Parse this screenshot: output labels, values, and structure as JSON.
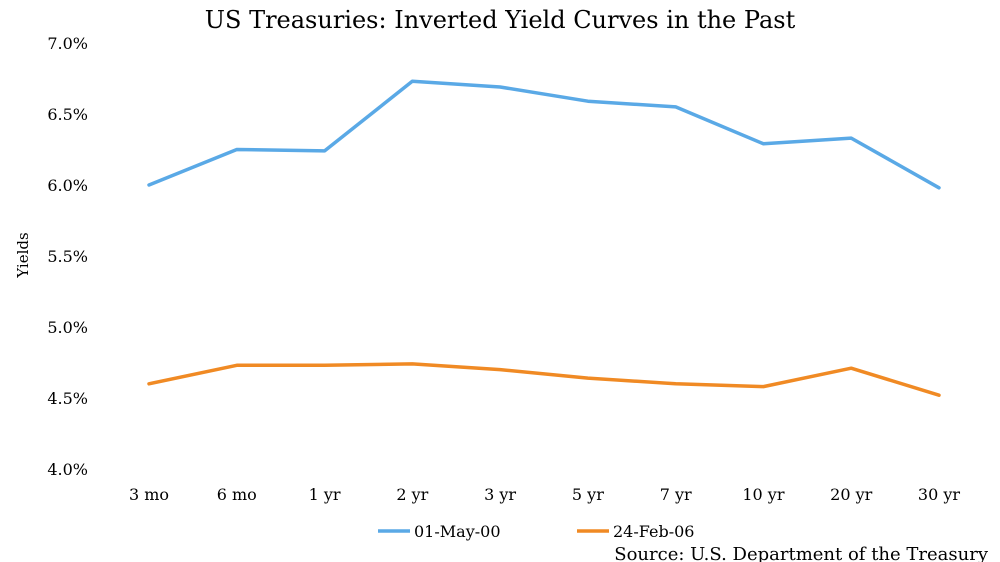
{
  "chart_data": {
    "type": "line",
    "title": "US Treasuries: Inverted Yield Curves in the Past",
    "ylabel": "Yields",
    "xlabel": "",
    "categories": [
      "3 mo",
      "6 mo",
      "1 yr",
      "2 yr",
      "3 yr",
      "5 yr",
      "7 yr",
      "10 yr",
      "20 yr",
      "30 yr"
    ],
    "ylim": [
      4.0,
      7.0
    ],
    "yticks": [
      "4.0%",
      "4.5%",
      "5.0%",
      "5.5%",
      "6.0%",
      "6.5%",
      "7.0%"
    ],
    "grid": false,
    "legend_position": "bottom",
    "series": [
      {
        "name": "01-May-00",
        "color": "#5aa9e6",
        "values": [
          6.0,
          6.25,
          6.24,
          6.73,
          6.69,
          6.59,
          6.55,
          6.29,
          6.33,
          5.98
        ]
      },
      {
        "name": "24-Feb-06",
        "color": "#f08a24",
        "values": [
          4.6,
          4.73,
          4.73,
          4.74,
          4.7,
          4.64,
          4.6,
          4.58,
          4.71,
          4.52
        ]
      }
    ],
    "annotation": "Source: U.S. Department of the Treasury"
  }
}
